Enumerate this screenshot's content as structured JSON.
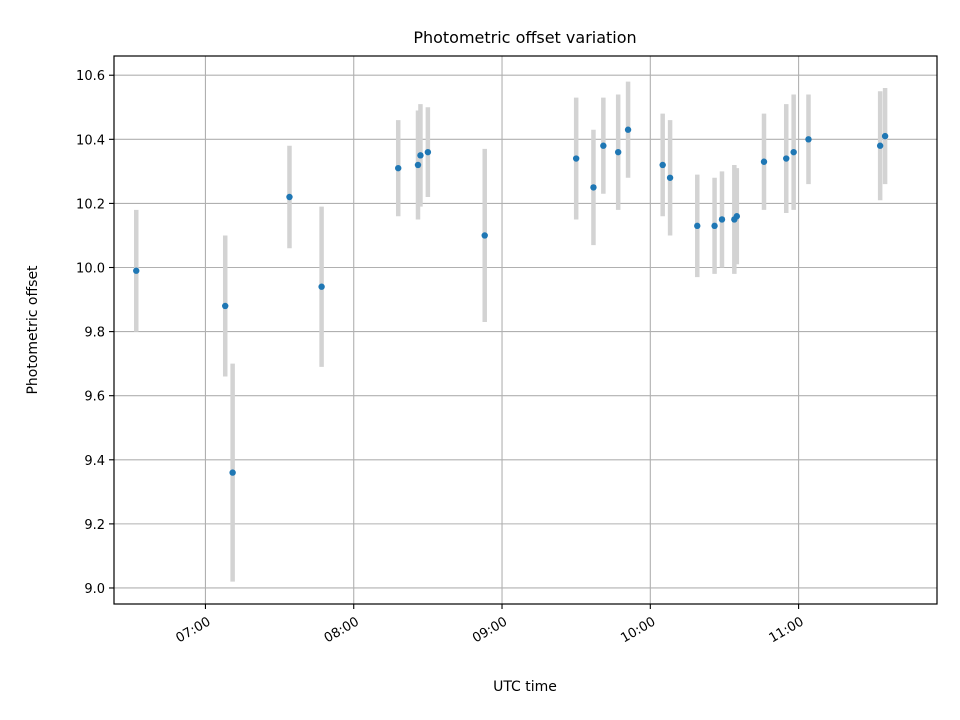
{
  "chart_data": {
    "type": "scatter",
    "title": "Photometric offset variation",
    "xlabel": "UTC time",
    "ylabel": "Photometric offset",
    "x_ticks": [
      "07:00",
      "08:00",
      "09:00",
      "10:00",
      "11:00"
    ],
    "y_ticks": [
      "9.0",
      "9.2",
      "9.4",
      "9.6",
      "9.8",
      "10.0",
      "10.2",
      "10.4",
      "10.6"
    ],
    "xlim": [
      "06:23",
      "11:56"
    ],
    "ylim": [
      8.95,
      10.66
    ],
    "grid": true,
    "colors": {
      "point": "#1f77b4",
      "errorbar": "#d3d3d3",
      "grid": "#b0b0b0"
    },
    "points": [
      {
        "time": "06:32",
        "y": 9.99,
        "err": 0.19
      },
      {
        "time": "07:08",
        "y": 9.88,
        "err": 0.22
      },
      {
        "time": "07:11",
        "y": 9.36,
        "err": 0.34
      },
      {
        "time": "07:34",
        "y": 10.22,
        "err": 0.16
      },
      {
        "time": "07:47",
        "y": 9.94,
        "err": 0.25
      },
      {
        "time": "08:18",
        "y": 10.31,
        "err": 0.15
      },
      {
        "time": "08:26",
        "y": 10.32,
        "err": 0.17
      },
      {
        "time": "08:27",
        "y": 10.35,
        "err": 0.16
      },
      {
        "time": "08:30",
        "y": 10.36,
        "err": 0.14
      },
      {
        "time": "08:53",
        "y": 10.1,
        "err": 0.27
      },
      {
        "time": "09:30",
        "y": 10.34,
        "err": 0.19
      },
      {
        "time": "09:37",
        "y": 10.25,
        "err": 0.18
      },
      {
        "time": "09:41",
        "y": 10.38,
        "err": 0.15
      },
      {
        "time": "09:47",
        "y": 10.36,
        "err": 0.18
      },
      {
        "time": "09:51",
        "y": 10.43,
        "err": 0.15
      },
      {
        "time": "10:05",
        "y": 10.32,
        "err": 0.16
      },
      {
        "time": "10:08",
        "y": 10.28,
        "err": 0.18
      },
      {
        "time": "10:19",
        "y": 10.13,
        "err": 0.16
      },
      {
        "time": "10:26",
        "y": 10.13,
        "err": 0.15
      },
      {
        "time": "10:29",
        "y": 10.15,
        "err": 0.15
      },
      {
        "time": "10:34",
        "y": 10.15,
        "err": 0.17
      },
      {
        "time": "10:35",
        "y": 10.16,
        "err": 0.15
      },
      {
        "time": "10:46",
        "y": 10.33,
        "err": 0.15
      },
      {
        "time": "10:55",
        "y": 10.34,
        "err": 0.17
      },
      {
        "time": "10:58",
        "y": 10.36,
        "err": 0.18
      },
      {
        "time": "11:04",
        "y": 10.4,
        "err": 0.14
      },
      {
        "time": "11:33",
        "y": 10.38,
        "err": 0.17
      },
      {
        "time": "11:35",
        "y": 10.41,
        "err": 0.15
      }
    ]
  }
}
